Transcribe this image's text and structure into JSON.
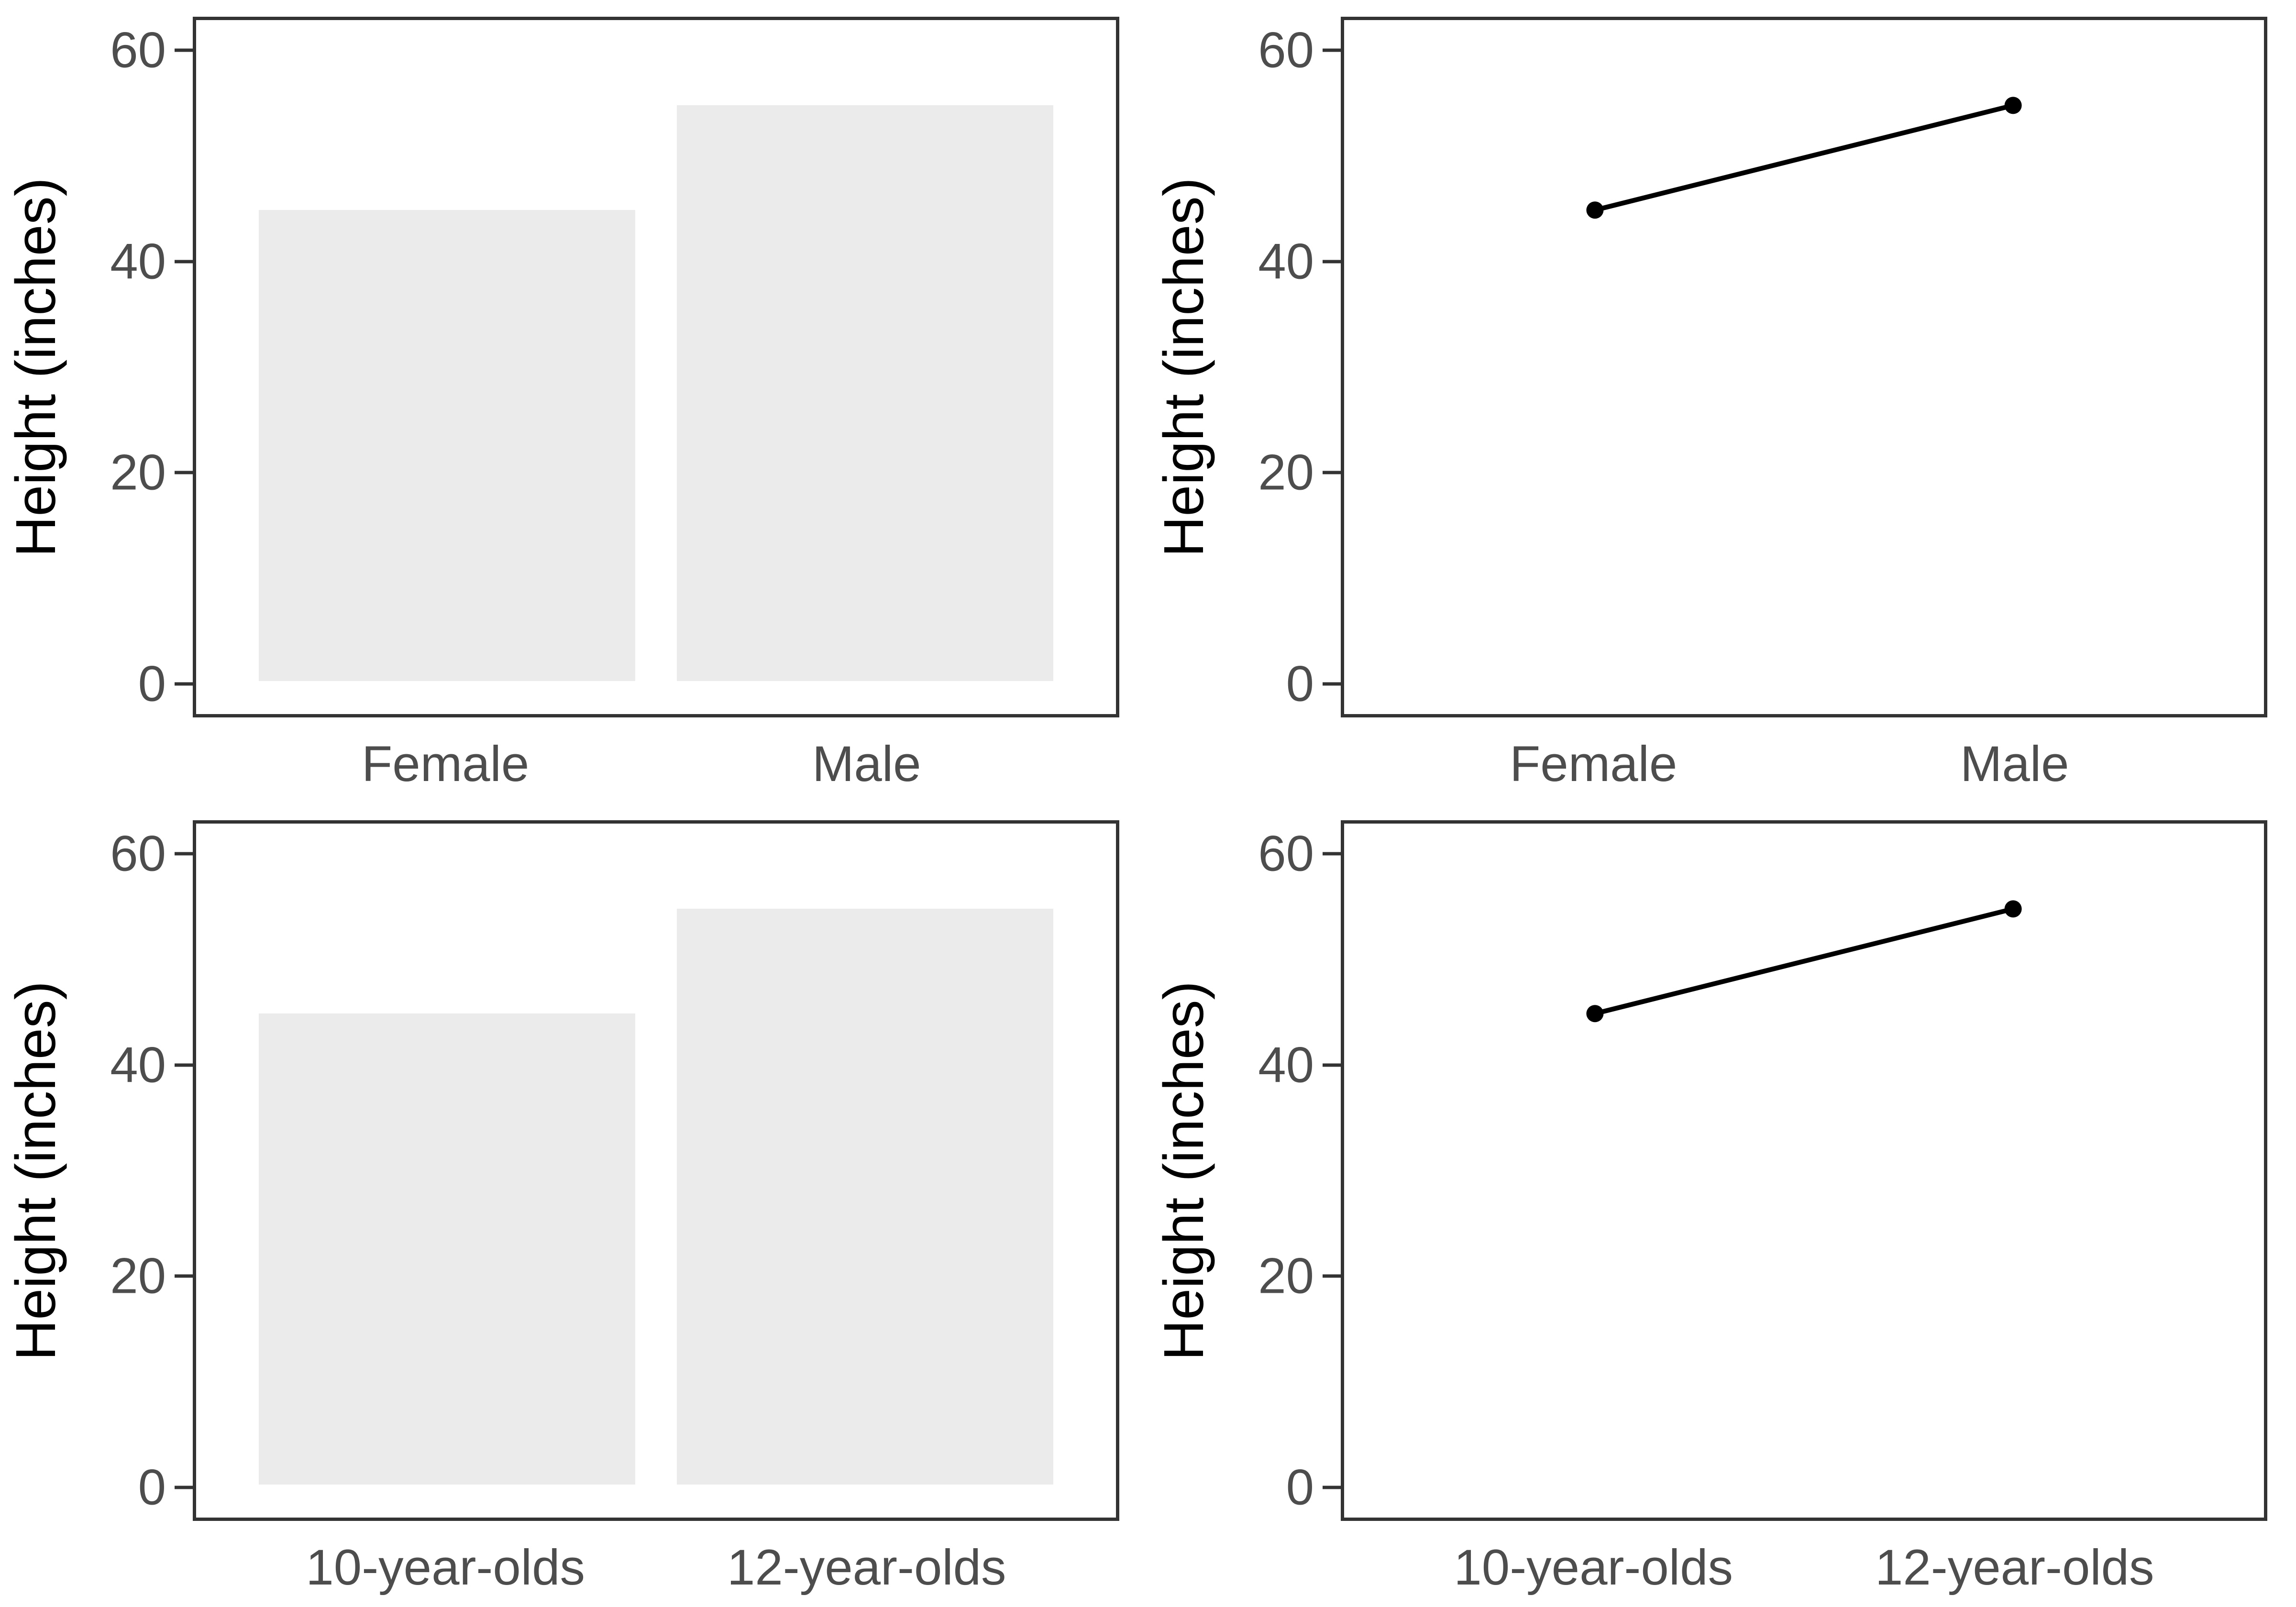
{
  "figure": {
    "description": "2x2 grid of charts comparing mean heights",
    "background": "#ffffff"
  },
  "style": {
    "bar_fill": "#ebebeb",
    "panel_border_color": "#333333",
    "tick_color": "#333333",
    "axis_text_color": "#4d4d4d",
    "axis_title_color": "#000000",
    "series_color": "#000000"
  },
  "axes": {
    "range": [
      -3.15,
      63.15
    ],
    "tick_values": [
      60,
      40,
      20,
      0
    ],
    "tick_labels": [
      "60",
      "40",
      "20",
      "0"
    ],
    "x_centers_pct": [
      27.27,
      72.73
    ],
    "bar_width_pct": 40.9
  },
  "chart_data": [
    {
      "type": "bar",
      "position": "top-left",
      "title": "",
      "xlabel": "",
      "ylabel": "Height (inches)",
      "categories": [
        "Female",
        "Male"
      ],
      "values": [
        45,
        55
      ],
      "ylim": [
        0,
        60
      ],
      "yticks": [
        0,
        20,
        40,
        60
      ],
      "grid": false
    },
    {
      "type": "line",
      "position": "top-right",
      "title": "",
      "xlabel": "",
      "ylabel": "Height (inches)",
      "categories": [
        "Female",
        "Male"
      ],
      "values": [
        45,
        55
      ],
      "ylim": [
        0,
        60
      ],
      "yticks": [
        0,
        20,
        40,
        60
      ],
      "grid": false,
      "markers": true
    },
    {
      "type": "bar",
      "position": "bottom-left",
      "title": "",
      "xlabel": "",
      "ylabel": "Height (inches)",
      "categories": [
        "10-year-olds",
        "12-year-olds"
      ],
      "values": [
        45,
        55
      ],
      "ylim": [
        0,
        60
      ],
      "yticks": [
        0,
        20,
        40,
        60
      ],
      "grid": false
    },
    {
      "type": "line",
      "position": "bottom-right",
      "title": "",
      "xlabel": "",
      "ylabel": "Height (inches)",
      "categories": [
        "10-year-olds",
        "12-year-olds"
      ],
      "values": [
        45,
        55
      ],
      "ylim": [
        0,
        60
      ],
      "yticks": [
        0,
        20,
        40,
        60
      ],
      "grid": false,
      "markers": true
    }
  ]
}
